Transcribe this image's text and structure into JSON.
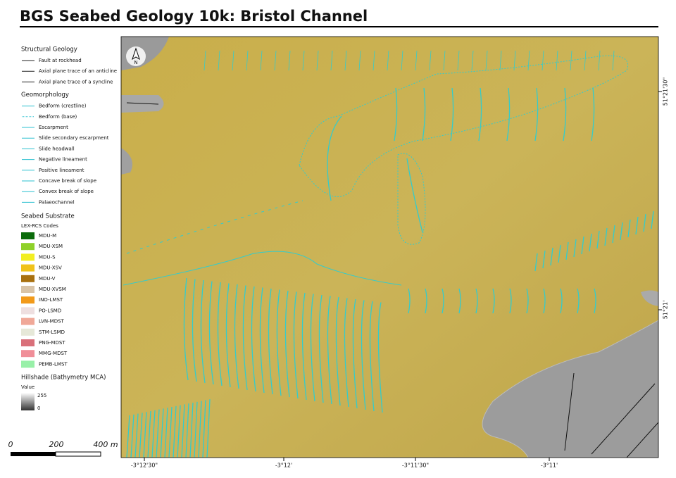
{
  "title": "BGS Seabed Geology 10k: Bristol Channel",
  "legend": {
    "sections": [
      {
        "heading": "Structural Geology",
        "items": [
          "Fault at rockhead",
          "Axial plane trace of an anticline",
          "Axial plane trace of a syncline"
        ]
      },
      {
        "heading": "Geomorphology",
        "items": [
          "Bedform (crestline)",
          "Bedform (base)",
          "Escarpment",
          "Slide secondary escarpment",
          "Slide headwall",
          "Negative lineament",
          "Positive  lineament",
          "Concave break of slope",
          "Convex break of slope",
          "Palaeochannel"
        ]
      }
    ],
    "substrate": {
      "heading": "Seabed Substrate",
      "subheading": "LEX-RCS Codes",
      "items": [
        {
          "label": "MDU-M",
          "color": "#0b6b0b"
        },
        {
          "label": "MDU-XSM",
          "color": "#8fd12a"
        },
        {
          "label": "MDU-S",
          "color": "#f2ee22"
        },
        {
          "label": "MDU-XSV",
          "color": "#f0c21a"
        },
        {
          "label": "MDU-V",
          "color": "#a8700f"
        },
        {
          "label": "MDU-XVSM",
          "color": "#d9c4a8"
        },
        {
          "label": "INO-LMST",
          "color": "#f29a1a"
        },
        {
          "label": "PO-LSMD",
          "color": "#eedfe0"
        },
        {
          "label": "LVN-MDST",
          "color": "#f0a898"
        },
        {
          "label": "STM-LSMD",
          "color": "#e6e8d8"
        },
        {
          "label": "PNG-MDST",
          "color": "#d9707a"
        },
        {
          "label": "MMG-MDST",
          "color": "#f08e98"
        },
        {
          "label": "PEMB-LMST",
          "color": "#98f0a8"
        }
      ]
    },
    "hillshade": {
      "heading": "Hillshade (Bathymetry MCA)",
      "subheading": "Value",
      "max": "255",
      "min": "0"
    }
  },
  "scale_bar": {
    "labels": [
      "0",
      "200",
      "400 m"
    ]
  },
  "coordinates": {
    "longitude": [
      "-3°12'30\"",
      "-3°12'",
      "-3°11'30\"",
      "-3°11'"
    ],
    "latitude": [
      "51°21'30\"",
      "51°21'"
    ]
  }
}
